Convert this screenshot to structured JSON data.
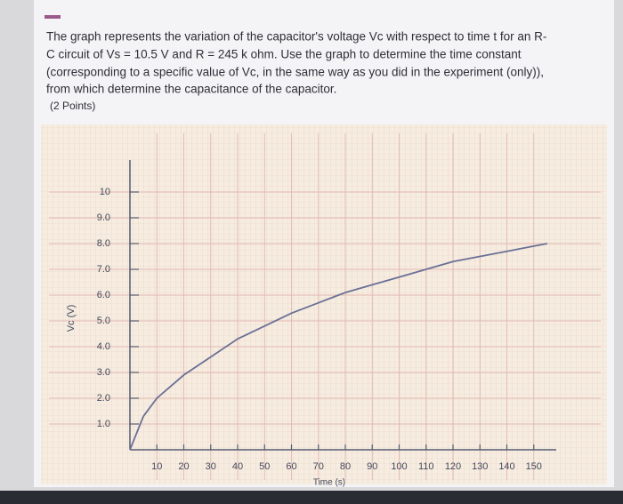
{
  "question": {
    "lines": [
      "The graph represents the variation of the capacitor's voltage Vc with respect to time t for an R-",
      "C circuit of Vs = 10.5 V and R = 245 k ohm. Use the graph to determine the time constant",
      "(corresponding to a specific value of Vc, in the same way as you did in the experiment (only)),",
      "from which determine the capacitance of the capacitor."
    ],
    "points": "(2 Points)"
  },
  "chart_data": {
    "type": "line",
    "x_label": "Time (s)",
    "y_label": "Vc (V)",
    "x": [
      0,
      5,
      10,
      20,
      30,
      40,
      50,
      60,
      70,
      80,
      90,
      100,
      110,
      120,
      130,
      140,
      150,
      155
    ],
    "series": [
      {
        "name": "Vc",
        "color": "#6a7096",
        "values": [
          0,
          1.3,
          2.0,
          2.9,
          3.6,
          4.3,
          4.8,
          5.3,
          5.7,
          6.1,
          6.4,
          6.7,
          7.0,
          7.3,
          7.5,
          7.7,
          7.9,
          8.0
        ]
      }
    ],
    "xlim": [
      0,
      160
    ],
    "ylim": [
      0,
      11
    ],
    "xticks": [
      10,
      20,
      30,
      40,
      50,
      60,
      70,
      80,
      90,
      100,
      110,
      120,
      130,
      140,
      150
    ],
    "yticks": [
      {
        "value": 1,
        "label": "1.0"
      },
      {
        "value": 2,
        "label": "2.0"
      },
      {
        "value": 3,
        "label": "3.0"
      },
      {
        "value": 4,
        "label": "4.0"
      },
      {
        "value": 5,
        "label": "5.0"
      },
      {
        "value": 6,
        "label": "6.0"
      },
      {
        "value": 7,
        "label": "7.0"
      },
      {
        "value": 8,
        "label": "8.0"
      },
      {
        "value": 9,
        "label": "9.0"
      },
      10
    ],
    "grid": true
  }
}
